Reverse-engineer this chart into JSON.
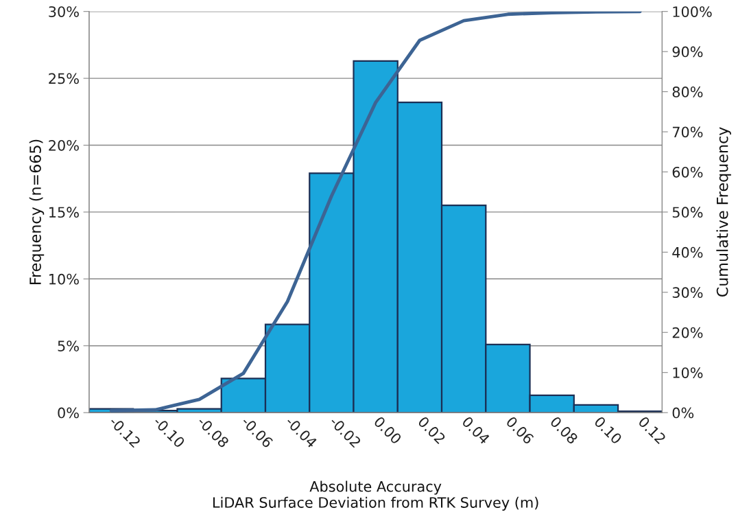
{
  "chart_data": {
    "type": "bar",
    "xlabel": "Absolute Accuracy\nLiDAR Surface Deviation from RTK Survey (m)",
    "ylabel": "Frequency (n=665)",
    "y2label": "Cumulative Frequency",
    "categories": [
      "-0.12",
      "-0.10",
      "-0.08",
      "-0.06",
      "-0.04",
      "-0.02",
      "0.00",
      "0.02",
      "0.04",
      "0.06",
      "0.08",
      "0.10",
      "0.12"
    ],
    "series": [
      {
        "color": "#1aa6dc",
        "values": [
          0.28,
          0.15,
          0.28,
          2.55,
          6.6,
          17.9,
          26.3,
          23.2,
          15.5,
          5.1,
          1.3,
          0.58,
          0.1
        ]
      },
      {
        "type": "line",
        "axis": "y2",
        "color": "#3d6494",
        "values": [
          0.5,
          0.7,
          3.3,
          9.8,
          27.7,
          54.0,
          77.3,
          92.8,
          97.7,
          99.3,
          99.7,
          99.9,
          100
        ]
      }
    ],
    "ylim": [
      0,
      30
    ],
    "yticks": [
      {
        "value": 0,
        "label": "0%"
      },
      {
        "value": 5,
        "label": "5%"
      },
      {
        "value": 10,
        "label": "10%"
      },
      {
        "value": 15,
        "label": "15%"
      },
      {
        "value": 20,
        "label": "20%"
      },
      {
        "value": 25,
        "label": "25%"
      },
      {
        "value": 30,
        "label": "30%"
      }
    ],
    "y2lim": [
      0,
      100
    ],
    "y2ticks": [
      {
        "value": 0,
        "label": "0%"
      },
      {
        "value": 10,
        "label": "10%"
      },
      {
        "value": 20,
        "label": "20%"
      },
      {
        "value": 30,
        "label": "30%"
      },
      {
        "value": 40,
        "label": "40%"
      },
      {
        "value": 50,
        "label": "50%"
      },
      {
        "value": 60,
        "label": "60%"
      },
      {
        "value": 70,
        "label": "70%"
      },
      {
        "value": 80,
        "label": "80%"
      },
      {
        "value": 90,
        "label": "90%"
      },
      {
        "value": 100,
        "label": "100%"
      }
    ],
    "grid": "y",
    "marker": "none",
    "line_style": "solid"
  }
}
